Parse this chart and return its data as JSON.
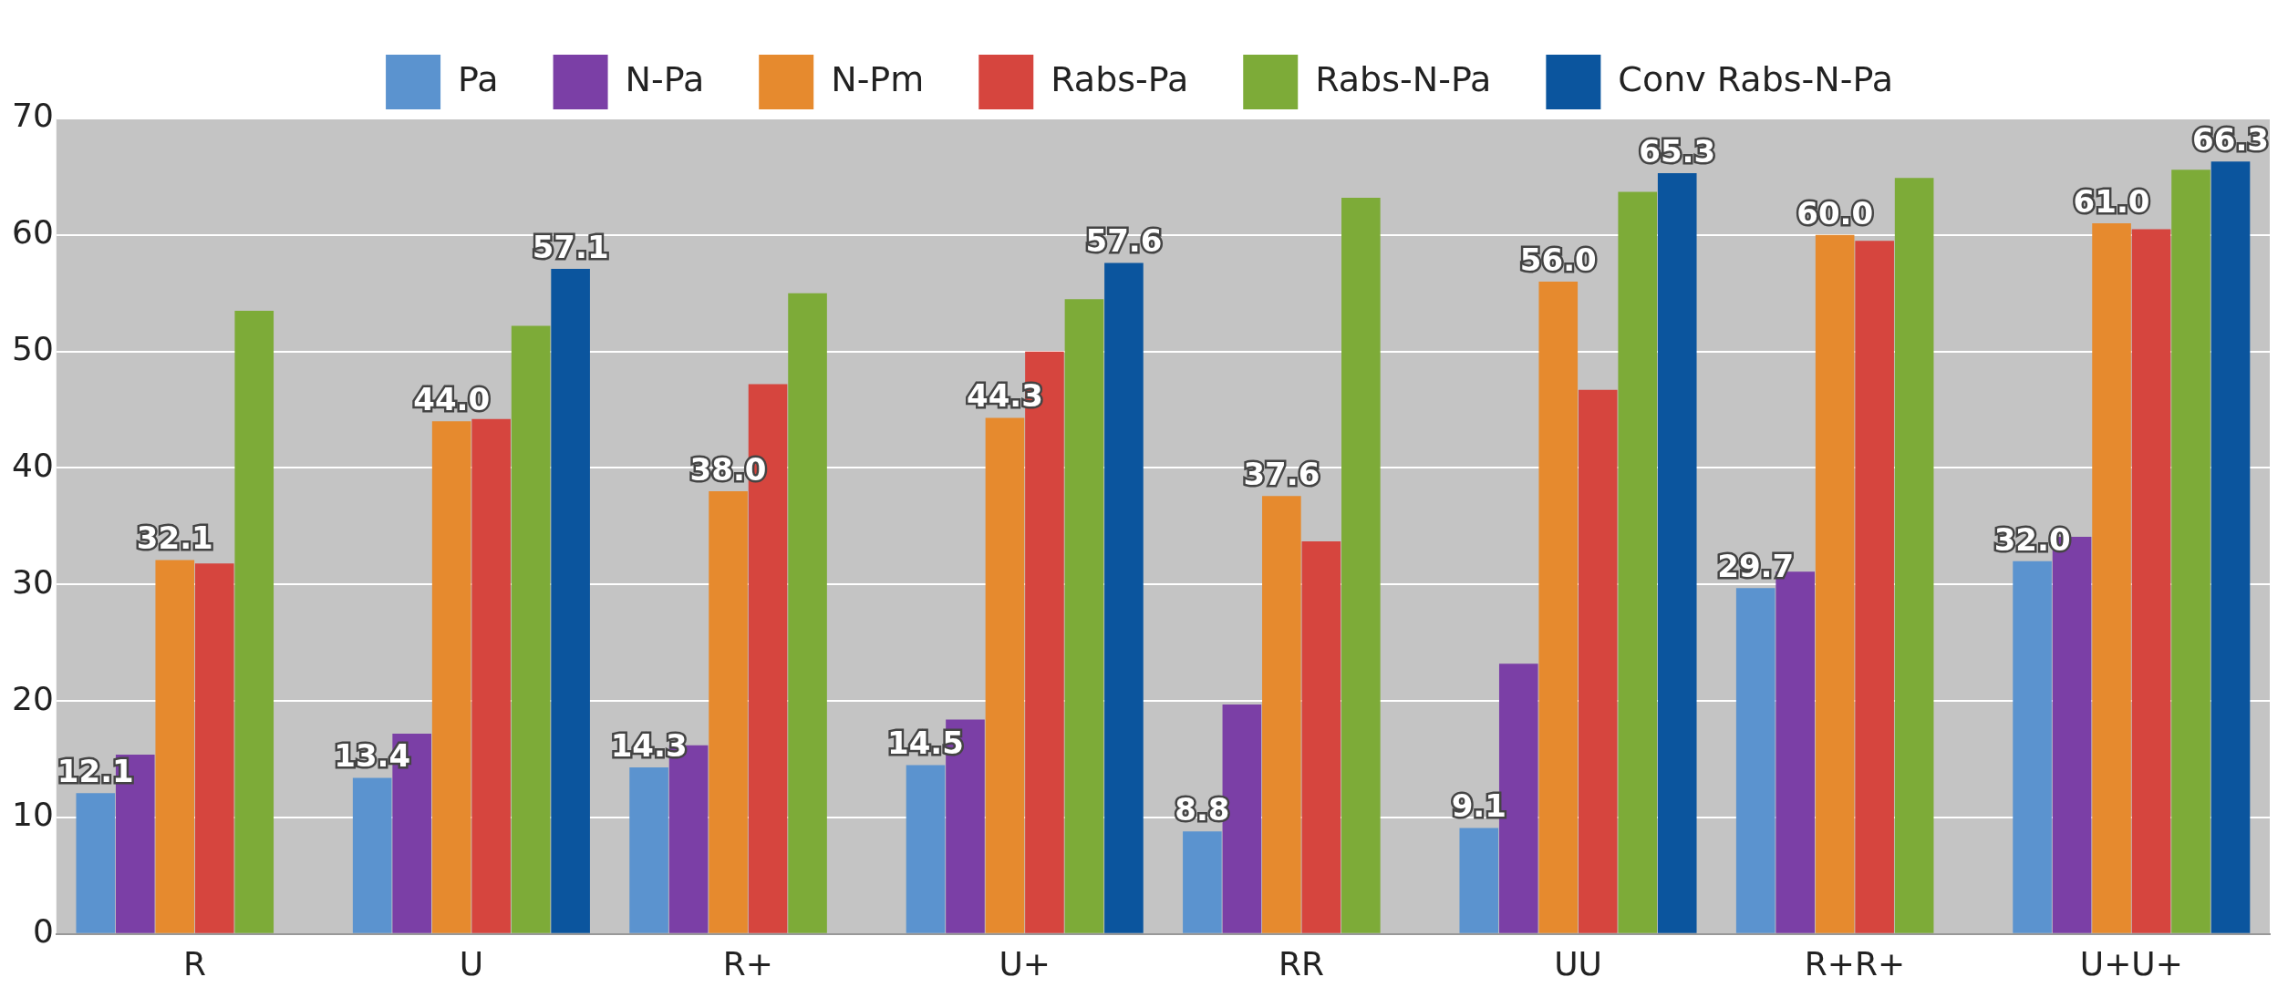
{
  "chart_data": {
    "type": "bar",
    "categories": [
      "R",
      "U",
      "R+",
      "U+",
      "RR",
      "UU",
      "R+R+",
      "U+U+"
    ],
    "series": [
      {
        "name": "Pa",
        "color": "#5b93cf",
        "values": [
          12.1,
          13.4,
          14.3,
          14.5,
          8.8,
          9.1,
          29.7,
          32.0
        ],
        "value_labels": [
          "12.1",
          "13.4",
          "14.3",
          "14.5",
          "8.8",
          "9.1",
          "29.7",
          "32.0"
        ]
      },
      {
        "name": "N-Pa",
        "color": "#7b3fa6",
        "values": [
          15.4,
          17.2,
          16.2,
          18.4,
          19.7,
          23.2,
          31.1,
          34.1
        ]
      },
      {
        "name": "N-Pm",
        "color": "#e68a2e",
        "values": [
          32.1,
          44.0,
          38.0,
          44.3,
          37.6,
          56.0,
          60.0,
          61.0
        ],
        "value_labels": [
          "32.1",
          "44.0",
          "38.0",
          "44.3",
          "37.6",
          "56.0",
          "60.0",
          "61.0"
        ]
      },
      {
        "name": "Rabs-Pa",
        "color": "#d6453e",
        "values": [
          31.8,
          44.2,
          47.2,
          50.0,
          33.7,
          46.7,
          59.5,
          60.5
        ]
      },
      {
        "name": "Rabs-N-Pa",
        "color": "#7dab38",
        "values": [
          53.5,
          52.2,
          55.0,
          54.5,
          63.2,
          63.7,
          64.9,
          65.6
        ]
      },
      {
        "name": "Conv Rabs-N-Pa",
        "color": "#0b559e",
        "values": [
          null,
          57.1,
          null,
          57.6,
          null,
          65.3,
          null,
          66.3
        ],
        "value_labels": [
          null,
          "57.1",
          null,
          "57.6",
          null,
          "65.3",
          null,
          "66.3"
        ]
      }
    ],
    "ylim": [
      0,
      70
    ],
    "yticks": [
      0,
      10,
      20,
      30,
      40,
      50,
      60,
      70
    ],
    "grid": "y",
    "legend": "top"
  }
}
